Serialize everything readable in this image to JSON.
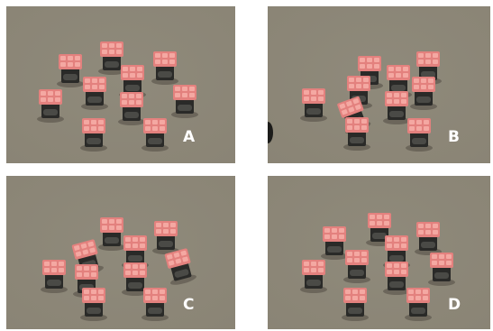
{
  "panels": [
    {
      "label": "A",
      "robot_count": 11
    },
    {
      "label": "B",
      "robot_count": 10
    },
    {
      "label": "C",
      "robot_count": 11
    },
    {
      "label": "D",
      "robot_count": 11
    }
  ],
  "colors": {
    "page_background": "#ffffff",
    "floor": "#8a8475",
    "robot_top": "#e3817e",
    "robot_top_pad": "#f4a8a2",
    "robot_body": "#2a2a28",
    "label_text": "#ffffff"
  }
}
